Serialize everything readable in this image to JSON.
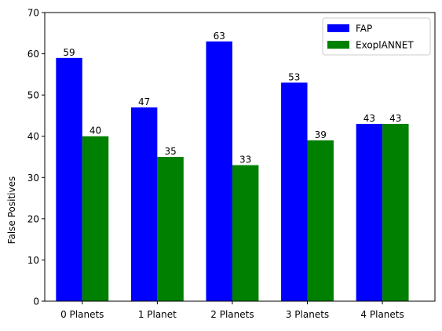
{
  "chart_data": {
    "type": "bar",
    "title": "",
    "xlabel": "",
    "ylabel": "False Positives",
    "ylim": [
      0,
      70
    ],
    "yticks": [
      0,
      10,
      20,
      30,
      40,
      50,
      60,
      70
    ],
    "grid": false,
    "legend_position": "top-right",
    "categories": [
      "0 Planets",
      "1 Planet",
      "2 Planets",
      "3 Planets",
      "4 Planets"
    ],
    "series": [
      {
        "name": "FAP",
        "color": "#0000ff",
        "values": [
          59,
          47,
          63,
          53,
          43
        ]
      },
      {
        "name": "ExoplANNET",
        "color": "#008000",
        "values": [
          40,
          35,
          33,
          39,
          43
        ]
      }
    ],
    "data_labels": true
  }
}
